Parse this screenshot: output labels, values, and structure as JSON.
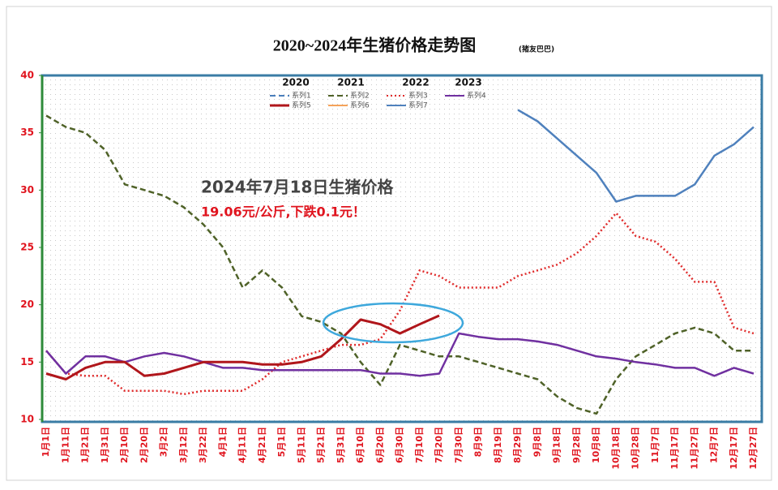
{
  "chart_data": {
    "type": "line",
    "title": "2020~2024年生猪价格走势图",
    "subtitle": "(猪友巴巴)",
    "annotations": [
      "2024年7月18日生猪价格",
      "19.06元/公斤,下跌0.1元！"
    ],
    "legend_headings": [
      "2020",
      "2021",
      "2022",
      "2023"
    ],
    "categories": [
      "1月1日",
      "1月11日",
      "1月21日",
      "1月31日",
      "2月10日",
      "2月20日",
      "3月2日",
      "3月12日",
      "3月22日",
      "4月1日",
      "4月11日",
      "4月21日",
      "5月1日",
      "5月11日",
      "5月21日",
      "5月31日",
      "6月10日",
      "6月20日",
      "6月30日",
      "7月10日",
      "7月20日",
      "7月30日",
      "8月9日",
      "8月19日",
      "8月29日",
      "9月8日",
      "9月18日",
      "9月28日",
      "10月8日",
      "10月18日",
      "10月28日",
      "11月7日",
      "11月17日",
      "11月27日",
      "12月7日",
      "12月17日",
      "12月27日"
    ],
    "ylim": [
      10,
      40
    ],
    "yticks": [
      10,
      15,
      20,
      25,
      30,
      35,
      40
    ],
    "grid": false,
    "series": [
      {
        "name": "系列1",
        "color": "#4a7ebb",
        "dash": "dash",
        "values": [
          null,
          null,
          null,
          null,
          null,
          null,
          null,
          null,
          null,
          null,
          null,
          null,
          null,
          null,
          null,
          null,
          null,
          null,
          null,
          null,
          null,
          null,
          null,
          null,
          null,
          null,
          null,
          null,
          null,
          null,
          null,
          null,
          null,
          null,
          null,
          null,
          null
        ]
      },
      {
        "name": "系列2",
        "color": "#4f6228",
        "dash": "dash",
        "values": [
          36.5,
          35.5,
          35,
          33.5,
          30.5,
          30,
          29.5,
          28.5,
          27,
          25,
          21.5,
          23,
          21.5,
          19,
          18.5,
          17.5,
          15,
          13,
          16.5,
          16,
          15.5,
          15.5,
          15,
          14.5,
          14,
          13.5,
          12,
          11,
          10.5,
          13.5,
          15.5,
          16.5,
          17.5,
          18,
          17.5,
          16,
          16
        ]
      },
      {
        "name": "系列3",
        "color": "#e02b2b",
        "dash": "dot",
        "values": [
          16,
          14,
          13.8,
          13.8,
          12.5,
          12.5,
          12.5,
          12.2,
          12.5,
          12.5,
          12.5,
          13.5,
          15,
          15.5,
          16,
          16.5,
          16.5,
          17,
          19.5,
          23,
          22.5,
          21.5,
          21.5,
          21.5,
          22.5,
          23,
          23.5,
          24.5,
          26,
          28,
          26,
          25.5,
          24,
          22,
          22,
          18,
          17.5
        ]
      },
      {
        "name": "系列4",
        "color": "#7030a0",
        "dash": "solid",
        "values": [
          16,
          14,
          15.5,
          15.5,
          15,
          15.5,
          15.8,
          15.5,
          15,
          14.5,
          14.5,
          14.3,
          14.3,
          14.3,
          14.3,
          14.3,
          14.3,
          14,
          14,
          13.8,
          14,
          17.5,
          17.2,
          17,
          17,
          16.8,
          16.5,
          16,
          15.5,
          15.3,
          15,
          14.8,
          14.5,
          14.5,
          13.8,
          14.5,
          14
        ]
      },
      {
        "name": "系列5",
        "color": "#b0161b",
        "dash": "solid",
        "values": [
          14,
          13.5,
          14.5,
          15,
          15,
          13.8,
          14,
          14.5,
          15,
          15,
          15,
          14.8,
          14.8,
          15,
          15.5,
          17,
          18.7,
          18.3,
          17.5,
          18.3,
          19.06,
          null,
          null,
          null,
          null,
          null,
          null,
          null,
          null,
          null,
          null,
          null,
          null,
          null,
          null,
          null,
          null
        ]
      },
      {
        "name": "系列6",
        "color": "#f5a35a",
        "dash": "solid",
        "values": [
          null,
          null,
          null,
          null,
          null,
          null,
          null,
          null,
          null,
          null,
          null,
          null,
          null,
          null,
          null,
          null,
          null,
          null,
          null,
          null,
          null,
          null,
          null,
          null,
          null,
          null,
          null,
          null,
          null,
          null,
          null,
          null,
          null,
          null,
          null,
          null,
          null
        ]
      },
      {
        "name": "系列7",
        "color": "#4f81bd",
        "dash": "solid",
        "values": [
          null,
          null,
          null,
          null,
          null,
          null,
          null,
          null,
          null,
          null,
          null,
          null,
          null,
          null,
          null,
          null,
          null,
          null,
          null,
          null,
          null,
          null,
          null,
          null,
          37,
          36,
          34.5,
          33,
          31.5,
          29,
          29.5,
          29.5,
          29.5,
          30.5,
          33,
          34,
          35.5
        ]
      }
    ]
  }
}
